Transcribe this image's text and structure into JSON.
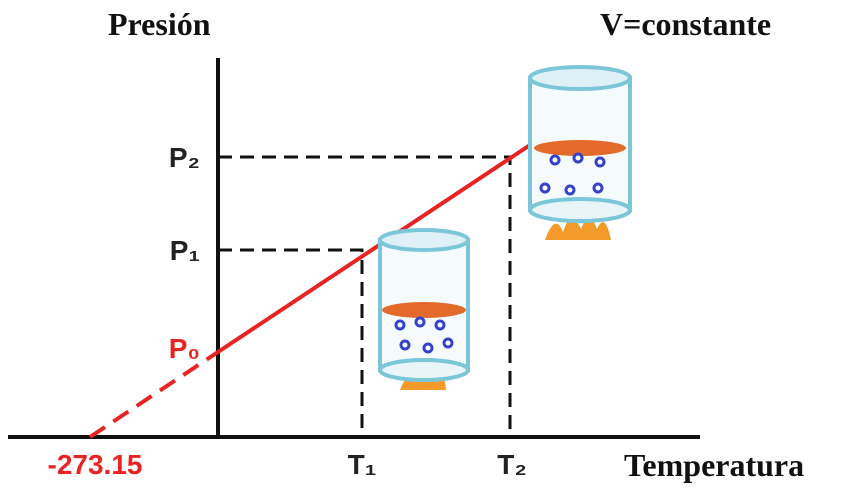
{
  "labels": {
    "y_axis": "Presión",
    "x_axis": "Temperatura",
    "condition": "V=constante",
    "p2": "P₂",
    "p1": "P₁",
    "p0": "P₀",
    "t1": "T₁",
    "t2": "T₂",
    "zero": "-273.15"
  }
}
